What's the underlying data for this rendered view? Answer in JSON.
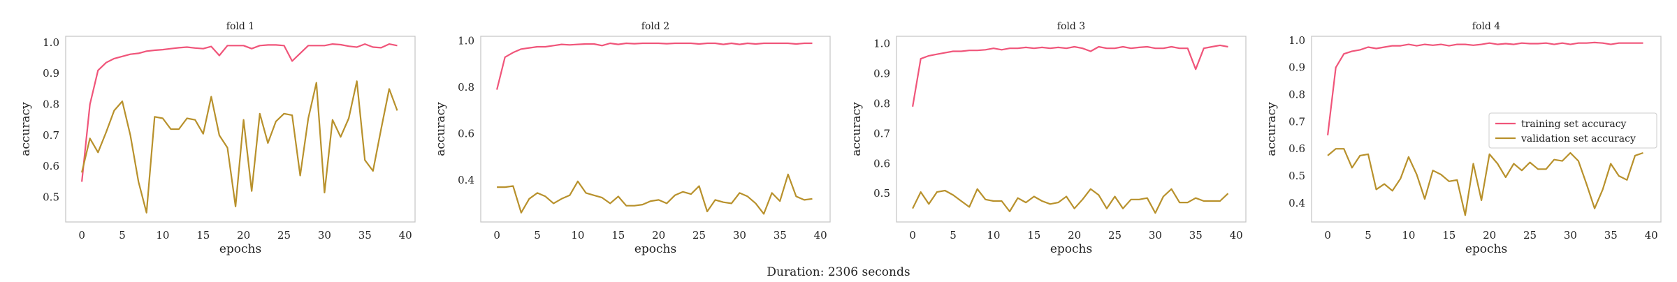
{
  "figure": {
    "caption": "Duration: 2306 seconds"
  },
  "colors": {
    "train": "#f0557a",
    "val": "#b8912c",
    "frame": "#c8c8c8",
    "text": "#222222"
  },
  "chart_data": [
    {
      "type": "line",
      "title": "fold 1",
      "xlabel": "epochs",
      "ylabel": "accuracy",
      "xlim": [
        -2,
        41.2
      ],
      "ylim": [
        0.42,
        1.02
      ],
      "xticks": [
        0,
        5,
        10,
        15,
        20,
        25,
        30,
        35,
        40
      ],
      "yticks": [
        0.5,
        0.6,
        0.7,
        0.8,
        0.9,
        1.0
      ],
      "ytick_labels": [
        "0.5",
        "0.6",
        "0.7",
        "0.8",
        "0.9",
        "1.0"
      ],
      "grid": false,
      "x": [
        0,
        1,
        2,
        3,
        4,
        5,
        6,
        7,
        8,
        9,
        10,
        11,
        12,
        13,
        14,
        15,
        16,
        17,
        18,
        19,
        20,
        21,
        22,
        23,
        24,
        25,
        26,
        27,
        28,
        29,
        30,
        31,
        32,
        33,
        34,
        35,
        36,
        37,
        38,
        39
      ],
      "series": [
        {
          "name": "training set accuracy",
          "color_key": "train",
          "values": [
            0.55,
            0.8,
            0.91,
            0.935,
            0.948,
            0.955,
            0.962,
            0.965,
            0.972,
            0.975,
            0.977,
            0.98,
            0.983,
            0.985,
            0.982,
            0.98,
            0.987,
            0.958,
            0.99,
            0.99,
            0.99,
            0.98,
            0.99,
            0.992,
            0.992,
            0.99,
            0.94,
            0.965,
            0.99,
            0.99,
            0.99,
            0.995,
            0.993,
            0.988,
            0.985,
            0.995,
            0.985,
            0.983,
            0.995,
            0.99
          ]
        },
        {
          "name": "validation set accuracy",
          "color_key": "val",
          "values": [
            0.58,
            0.69,
            0.645,
            0.71,
            0.78,
            0.81,
            0.7,
            0.55,
            0.45,
            0.76,
            0.755,
            0.72,
            0.72,
            0.755,
            0.75,
            0.705,
            0.825,
            0.7,
            0.66,
            0.47,
            0.75,
            0.52,
            0.77,
            0.675,
            0.745,
            0.77,
            0.765,
            0.57,
            0.755,
            0.87,
            0.515,
            0.75,
            0.695,
            0.755,
            0.875,
            0.62,
            0.585,
            0.72,
            0.85,
            0.78
          ]
        }
      ]
    },
    {
      "type": "line",
      "title": "fold 2",
      "xlabel": "epochs",
      "ylabel": "accuracy",
      "xlim": [
        -2,
        41.2
      ],
      "ylim": [
        0.22,
        1.02
      ],
      "xticks": [
        0,
        5,
        10,
        15,
        20,
        25,
        30,
        35,
        40
      ],
      "yticks": [
        0.4,
        0.6,
        0.8,
        1.0
      ],
      "ytick_labels": [
        "0.4",
        "0.6",
        "0.8",
        "1.0"
      ],
      "grid": false,
      "x": [
        0,
        1,
        2,
        3,
        4,
        5,
        6,
        7,
        8,
        9,
        10,
        11,
        12,
        13,
        14,
        15,
        16,
        17,
        18,
        19,
        20,
        21,
        22,
        23,
        24,
        25,
        26,
        27,
        28,
        29,
        30,
        31,
        32,
        33,
        34,
        35,
        36,
        37,
        38,
        39
      ],
      "series": [
        {
          "name": "training set accuracy",
          "color_key": "train",
          "values": [
            0.79,
            0.93,
            0.95,
            0.965,
            0.97,
            0.975,
            0.975,
            0.98,
            0.985,
            0.983,
            0.985,
            0.987,
            0.987,
            0.98,
            0.99,
            0.985,
            0.99,
            0.988,
            0.99,
            0.99,
            0.99,
            0.988,
            0.99,
            0.99,
            0.99,
            0.987,
            0.99,
            0.99,
            0.985,
            0.99,
            0.985,
            0.99,
            0.987,
            0.99,
            0.99,
            0.99,
            0.99,
            0.987,
            0.99,
            0.99
          ]
        },
        {
          "name": "validation set accuracy",
          "color_key": "val",
          "values": [
            0.37,
            0.37,
            0.375,
            0.26,
            0.32,
            0.345,
            0.33,
            0.3,
            0.32,
            0.335,
            0.395,
            0.345,
            0.335,
            0.325,
            0.3,
            0.33,
            0.29,
            0.29,
            0.295,
            0.31,
            0.315,
            0.3,
            0.335,
            0.35,
            0.34,
            0.375,
            0.265,
            0.315,
            0.305,
            0.3,
            0.345,
            0.33,
            0.3,
            0.255,
            0.345,
            0.31,
            0.425,
            0.33,
            0.315,
            0.32
          ]
        }
      ]
    },
    {
      "type": "line",
      "title": "fold 3",
      "xlabel": "epochs",
      "ylabel": "accuracy",
      "xlim": [
        -2,
        41.2
      ],
      "ylim": [
        0.405,
        1.025
      ],
      "xticks": [
        0,
        5,
        10,
        15,
        20,
        25,
        30,
        35,
        40
      ],
      "yticks": [
        0.5,
        0.6,
        0.7,
        0.8,
        0.9,
        1.0
      ],
      "ytick_labels": [
        "0.5",
        "0.6",
        "0.7",
        "0.8",
        "0.9",
        "1.0"
      ],
      "grid": false,
      "x": [
        0,
        1,
        2,
        3,
        4,
        5,
        6,
        7,
        8,
        9,
        10,
        11,
        12,
        13,
        14,
        15,
        16,
        17,
        18,
        19,
        20,
        21,
        22,
        23,
        24,
        25,
        26,
        27,
        28,
        29,
        30,
        31,
        32,
        33,
        34,
        35,
        36,
        37,
        38,
        39
      ],
      "series": [
        {
          "name": "training set accuracy",
          "color_key": "train",
          "values": [
            0.79,
            0.95,
            0.96,
            0.965,
            0.97,
            0.975,
            0.975,
            0.978,
            0.978,
            0.98,
            0.985,
            0.98,
            0.985,
            0.985,
            0.988,
            0.985,
            0.988,
            0.985,
            0.988,
            0.985,
            0.99,
            0.985,
            0.975,
            0.99,
            0.985,
            0.985,
            0.99,
            0.985,
            0.988,
            0.99,
            0.985,
            0.985,
            0.99,
            0.985,
            0.985,
            0.915,
            0.985,
            0.99,
            0.995,
            0.99
          ]
        },
        {
          "name": "validation set accuracy",
          "color_key": "val",
          "values": [
            0.45,
            0.505,
            0.465,
            0.505,
            0.51,
            0.495,
            0.475,
            0.455,
            0.515,
            0.48,
            0.475,
            0.475,
            0.44,
            0.485,
            0.47,
            0.49,
            0.475,
            0.465,
            0.47,
            0.49,
            0.45,
            0.48,
            0.515,
            0.495,
            0.45,
            0.49,
            0.45,
            0.48,
            0.48,
            0.485,
            0.435,
            0.49,
            0.515,
            0.47,
            0.47,
            0.485,
            0.475,
            0.475,
            0.475,
            0.5
          ]
        }
      ]
    },
    {
      "type": "line",
      "title": "fold 4",
      "xlabel": "epochs",
      "ylabel": "accuracy",
      "xlim": [
        -2,
        41.2
      ],
      "ylim": [
        0.33,
        1.015
      ],
      "xticks": [
        0,
        5,
        10,
        15,
        20,
        25,
        30,
        35,
        40
      ],
      "yticks": [
        0.4,
        0.5,
        0.6,
        0.7,
        0.8,
        0.9,
        1.0
      ],
      "ytick_labels": [
        "0.4",
        "0.5",
        "0.6",
        "0.7",
        "0.8",
        "0.9",
        "1.0"
      ],
      "grid": false,
      "legend": "right",
      "x": [
        0,
        1,
        2,
        3,
        4,
        5,
        6,
        7,
        8,
        9,
        10,
        11,
        12,
        13,
        14,
        15,
        16,
        17,
        18,
        19,
        20,
        21,
        22,
        23,
        24,
        25,
        26,
        27,
        28,
        29,
        30,
        31,
        32,
        33,
        34,
        35,
        36,
        37,
        38,
        39
      ],
      "series": [
        {
          "name": "training set accuracy",
          "color_key": "train",
          "values": [
            0.65,
            0.9,
            0.95,
            0.96,
            0.965,
            0.975,
            0.97,
            0.975,
            0.98,
            0.98,
            0.985,
            0.98,
            0.985,
            0.982,
            0.985,
            0.98,
            0.985,
            0.985,
            0.982,
            0.985,
            0.99,
            0.985,
            0.988,
            0.985,
            0.99,
            0.988,
            0.988,
            0.99,
            0.985,
            0.99,
            0.985,
            0.99,
            0.99,
            0.992,
            0.99,
            0.985,
            0.99,
            0.99,
            0.99,
            0.99
          ]
        },
        {
          "name": "validation set accuracy",
          "color_key": "val",
          "values": [
            0.575,
            0.6,
            0.6,
            0.53,
            0.575,
            0.58,
            0.45,
            0.47,
            0.445,
            0.49,
            0.57,
            0.505,
            0.415,
            0.52,
            0.505,
            0.48,
            0.485,
            0.355,
            0.545,
            0.41,
            0.58,
            0.545,
            0.495,
            0.545,
            0.52,
            0.55,
            0.525,
            0.525,
            0.56,
            0.555,
            0.585,
            0.555,
            0.47,
            0.38,
            0.45,
            0.545,
            0.5,
            0.485,
            0.575,
            0.585
          ]
        }
      ]
    }
  ]
}
